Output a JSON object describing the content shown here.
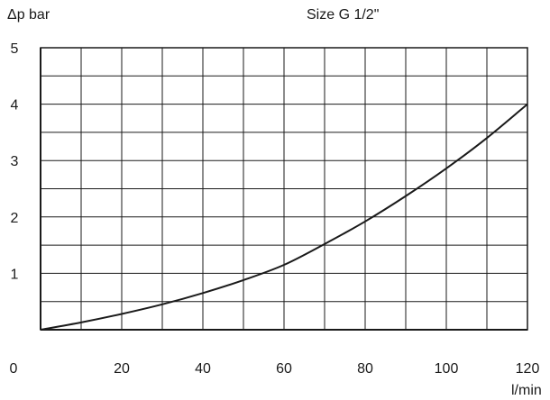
{
  "chart_data": {
    "type": "line",
    "title": "Size G 1/2\"",
    "ylabel": "Δp bar",
    "xlabel": "l/min",
    "xlim": [
      0,
      120
    ],
    "ylim": [
      0,
      5
    ],
    "x_ticks": [
      0,
      20,
      40,
      60,
      80,
      100,
      120
    ],
    "y_ticks": [
      1,
      2,
      3,
      4,
      5
    ],
    "x_tick_labels": [
      "0",
      "20",
      "40",
      "60",
      "80",
      "100",
      "120"
    ],
    "y_tick_labels": [
      "1",
      "2",
      "3",
      "4",
      "5"
    ],
    "grid": true,
    "x_grid_step": 10,
    "y_grid_step": 0.5,
    "series": [
      {
        "x": [
          0,
          10,
          20,
          30,
          40,
          50,
          60,
          70,
          80,
          90,
          100,
          110,
          120
        ],
        "y": [
          0,
          0.13,
          0.28,
          0.45,
          0.65,
          0.88,
          1.15,
          1.52,
          1.92,
          2.37,
          2.86,
          3.4,
          4.0
        ]
      }
    ]
  }
}
